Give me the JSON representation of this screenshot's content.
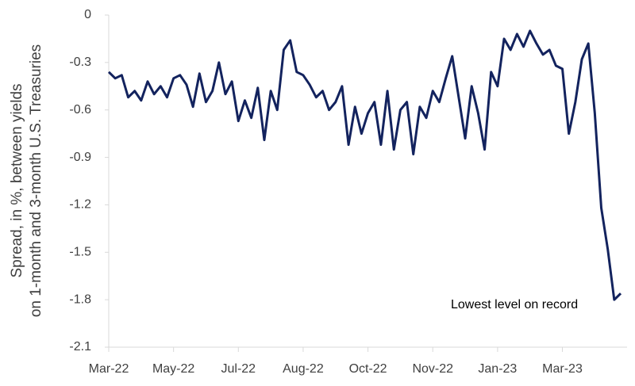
{
  "chart_data": {
    "type": "line",
    "y_label": [
      "Spread, in %, between yields",
      "on 1-month and 3-month U.S. Treasuries"
    ],
    "annotation": "Lowest level on record",
    "color": "#13235e",
    "categories": [
      "Mar-22",
      null,
      null,
      null,
      null,
      null,
      null,
      null,
      null,
      null,
      "May-22",
      null,
      null,
      null,
      null,
      null,
      null,
      null,
      null,
      null,
      "Jul-22",
      null,
      null,
      null,
      null,
      null,
      null,
      null,
      null,
      null,
      "Aug-22",
      null,
      null,
      null,
      null,
      null,
      null,
      null,
      null,
      null,
      "Oct-22",
      null,
      null,
      null,
      null,
      null,
      null,
      null,
      null,
      null,
      "Nov-22",
      null,
      null,
      null,
      null,
      null,
      null,
      null,
      null,
      null,
      "Jan-23",
      null,
      null,
      null,
      null,
      null,
      null,
      null,
      null,
      null,
      "Mar-23",
      null,
      null,
      null,
      null,
      null,
      null,
      null,
      null,
      null
    ],
    "values": [
      -0.36,
      -0.4,
      -0.38,
      -0.52,
      -0.48,
      -0.54,
      -0.42,
      -0.5,
      -0.45,
      -0.52,
      -0.4,
      -0.38,
      -0.44,
      -0.58,
      -0.37,
      -0.55,
      -0.48,
      -0.3,
      -0.5,
      -0.42,
      -0.67,
      -0.54,
      -0.65,
      -0.46,
      -0.79,
      -0.48,
      -0.6,
      -0.22,
      -0.16,
      -0.36,
      -0.38,
      -0.44,
      -0.52,
      -0.48,
      -0.6,
      -0.55,
      -0.45,
      -0.82,
      -0.58,
      -0.75,
      -0.62,
      -0.55,
      -0.82,
      -0.48,
      -0.85,
      -0.6,
      -0.55,
      -0.88,
      -0.58,
      -0.65,
      -0.48,
      -0.55,
      -0.4,
      -0.26,
      -0.52,
      -0.78,
      -0.45,
      -0.62,
      -0.85,
      -0.36,
      -0.45,
      -0.15,
      -0.22,
      -0.12,
      -0.2,
      -0.1,
      -0.18,
      -0.25,
      -0.22,
      -0.32,
      -0.34,
      -0.75,
      -0.55,
      -0.28,
      -0.18,
      -0.62,
      -1.22,
      -1.48,
      -1.8,
      -1.76
    ],
    "ylim": [
      -2.1,
      0
    ],
    "yticks": [
      0,
      -0.3,
      -0.6,
      -0.9,
      -1.2,
      -1.5,
      -1.8,
      -2.1
    ],
    "grid": false
  }
}
